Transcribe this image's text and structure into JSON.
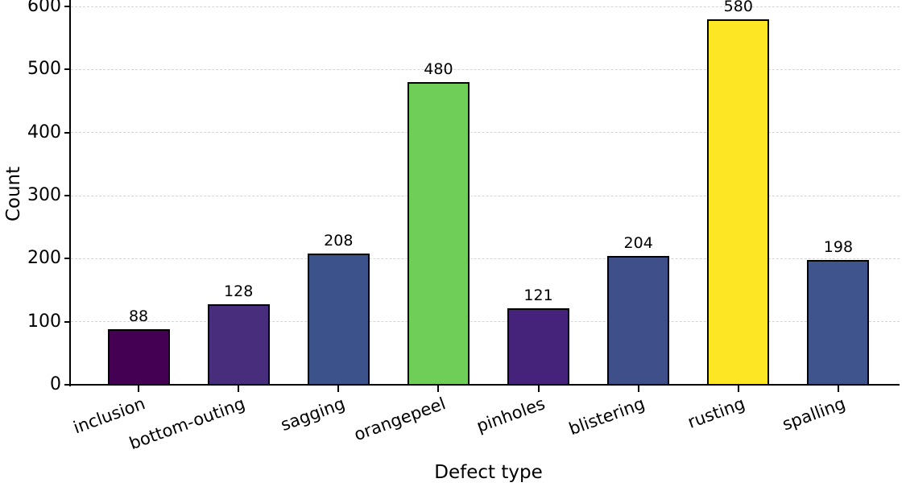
{
  "chart_data": {
    "type": "bar",
    "title": "",
    "xlabel": "Defect type",
    "ylabel": "Count",
    "categories": [
      "inclusion",
      "bottom-outing",
      "sagging",
      "orangepeel",
      "pinholes",
      "blistering",
      "rusting",
      "spalling"
    ],
    "values": [
      88,
      128,
      208,
      480,
      121,
      204,
      580,
      198
    ],
    "bar_colors": [
      "#440154",
      "#472d7b",
      "#3b528b",
      "#6ece58",
      "#46237a",
      "#3e4f89",
      "#fde725",
      "#3f548c"
    ],
    "bar_edge_color": "#000000",
    "value_labels": [
      "88",
      "128",
      "208",
      "480",
      "121",
      "204",
      "580",
      "198"
    ],
    "ylim": [
      0,
      600
    ],
    "yticks": [
      0,
      100,
      200,
      300,
      400,
      500,
      600
    ],
    "grid": "horizontal-dashed",
    "grid_color": "#d5d5d5",
    "background_color": "#ffffff",
    "x_tick_rotation_deg": 20,
    "legend": "none"
  }
}
